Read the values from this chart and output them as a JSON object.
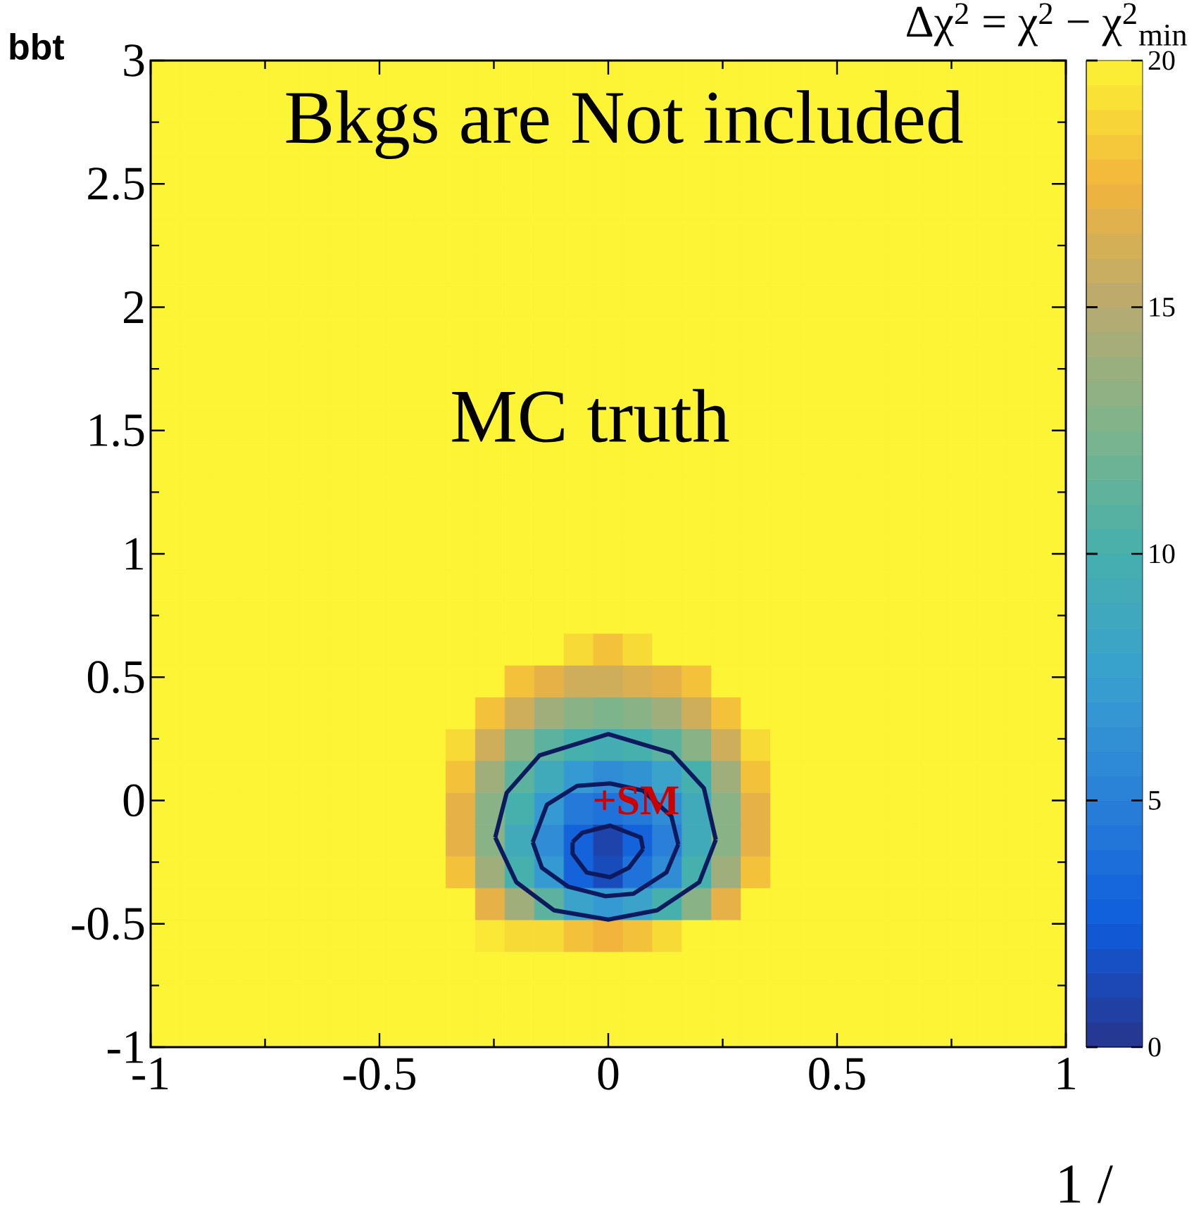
{
  "chart_data": {
    "type": "heatmap",
    "ylabel": "bbt",
    "xlabel": "1 /",
    "clabel": "Δχ$^{2}$ = χ$^{2}$ − χ$^{2}$$_{min}$",
    "annotations": [
      "Bkgs are Not included",
      "MC truth",
      "+SM"
    ],
    "xlim": [
      -1,
      1
    ],
    "ylim": [
      -1,
      3
    ],
    "xticks": [
      -1,
      -0.5,
      0,
      0.5,
      1
    ],
    "yticks": [
      -1,
      -0.5,
      0,
      0.5,
      1,
      1.5,
      2,
      2.5,
      3
    ],
    "clim": [
      0,
      20
    ],
    "cticks": [
      0,
      5,
      10,
      15,
      20
    ],
    "x": [
      -0.9677,
      -0.9032,
      -0.8387,
      -0.7742,
      -0.7097,
      -0.6452,
      -0.5806,
      -0.5161,
      -0.4516,
      -0.3871,
      -0.3226,
      -0.2581,
      -0.1935,
      -0.129,
      -0.0645,
      0,
      0.0645,
      0.129,
      0.1935,
      0.2581,
      0.3226,
      0.3871,
      0.4516,
      0.5161,
      0.5806,
      0.6452,
      0.7097,
      0.7742,
      0.8387,
      0.9032,
      0.9677
    ],
    "y": [
      2.9355,
      2.8065,
      2.6774,
      2.5484,
      2.4194,
      2.2903,
      2.1613,
      2.0323,
      1.9032,
      1.7742,
      1.6452,
      1.5161,
      1.3871,
      1.2581,
      1.129,
      1,
      0.871,
      0.7419,
      0.6129,
      0.4839,
      0.3548,
      0.2258,
      0.0968,
      -0.0323,
      -0.1613,
      -0.2903,
      -0.4194,
      -0.5484,
      -0.6774,
      -0.8065,
      -0.9355
    ],
    "cells": [
      [
        20,
        20,
        20,
        20,
        20,
        20,
        20,
        20,
        20,
        20,
        20,
        20,
        20,
        20,
        20,
        20,
        20,
        20,
        20,
        20,
        20,
        20,
        20,
        20,
        20,
        20,
        20,
        20,
        20,
        20,
        20
      ],
      [
        20,
        20,
        20,
        20,
        20,
        20,
        20,
        20,
        20,
        20,
        20,
        20,
        20,
        20,
        20,
        20,
        20,
        20,
        20,
        20,
        20,
        20,
        20,
        20,
        20,
        20,
        20,
        20,
        20,
        20,
        20
      ],
      [
        20,
        20,
        20,
        20,
        20,
        20,
        20,
        20,
        20,
        20,
        20,
        20,
        20,
        20,
        20,
        20,
        20,
        20,
        20,
        20,
        20,
        20,
        20,
        20,
        20,
        20,
        20,
        20,
        20,
        20,
        20
      ],
      [
        20,
        20,
        20,
        20,
        20,
        20,
        20,
        20,
        20,
        20,
        20,
        20,
        20,
        20,
        20,
        20,
        20,
        20,
        20,
        20,
        20,
        20,
        20,
        20,
        20,
        20,
        20,
        20,
        20,
        20,
        20
      ],
      [
        20,
        20,
        20,
        20,
        20,
        20,
        20,
        20,
        20,
        20,
        20,
        20,
        20,
        20,
        20,
        20,
        20,
        20,
        20,
        20,
        20,
        20,
        20,
        20,
        20,
        20,
        20,
        20,
        20,
        20,
        20
      ],
      [
        20,
        20,
        20,
        20,
        20,
        20,
        20,
        20,
        20,
        20,
        20,
        20,
        20,
        20,
        20,
        20,
        20,
        20,
        20,
        20,
        20,
        20,
        20,
        20,
        20,
        20,
        20,
        20,
        20,
        20,
        20
      ],
      [
        20,
        20,
        20,
        20,
        20,
        20,
        20,
        20,
        20,
        20,
        20,
        20,
        20,
        20,
        20,
        20,
        20,
        20,
        20,
        20,
        20,
        20,
        20,
        20,
        20,
        20,
        20,
        20,
        20,
        20,
        20
      ],
      [
        20,
        20,
        20,
        20,
        20,
        20,
        20,
        20,
        20,
        20,
        20,
        20,
        20,
        20,
        20,
        20,
        20,
        20,
        20,
        20,
        20,
        20,
        20,
        20,
        20,
        20,
        20,
        20,
        20,
        20,
        20
      ],
      [
        20,
        20,
        20,
        20,
        20,
        20,
        20,
        20,
        20,
        20,
        20,
        20,
        20,
        20,
        20,
        20,
        20,
        20,
        20,
        20,
        20,
        20,
        20,
        20,
        20,
        20,
        20,
        20,
        20,
        20,
        20
      ],
      [
        20,
        20,
        20,
        20,
        20,
        20,
        20,
        20,
        20,
        20,
        20,
        20,
        20,
        20,
        20,
        20,
        20,
        20,
        20,
        20,
        20,
        20,
        20,
        20,
        20,
        20,
        20,
        20,
        20,
        20,
        20
      ],
      [
        20,
        20,
        20,
        20,
        20,
        20,
        20,
        20,
        20,
        20,
        20,
        20,
        20,
        20,
        20,
        20,
        20,
        20,
        20,
        20,
        20,
        20,
        20,
        20,
        20,
        20,
        20,
        20,
        20,
        20,
        20
      ],
      [
        20,
        20,
        20,
        20,
        20,
        20,
        20,
        20,
        20,
        20,
        20,
        20,
        20,
        20,
        20,
        20,
        20,
        20,
        20,
        20,
        20,
        20,
        20,
        20,
        20,
        20,
        20,
        20,
        20,
        20,
        20
      ],
      [
        20,
        20,
        20,
        20,
        20,
        20,
        20,
        20,
        20,
        20,
        20,
        20,
        20,
        20,
        20,
        20,
        20,
        20,
        20,
        20,
        20,
        20,
        20,
        20,
        20,
        20,
        20,
        20,
        20,
        20,
        20
      ],
      [
        20,
        20,
        20,
        20,
        20,
        20,
        20,
        20,
        20,
        20,
        20,
        20,
        20,
        20,
        20,
        20,
        20,
        20,
        20,
        20,
        20,
        20,
        20,
        20,
        20,
        20,
        20,
        20,
        20,
        20,
        20
      ],
      [
        20,
        20,
        20,
        20,
        20,
        20,
        20,
        20,
        20,
        20,
        20,
        20,
        20,
        20,
        20,
        20,
        20,
        20,
        20,
        20,
        20,
        20,
        20,
        20,
        20,
        20,
        20,
        20,
        20,
        20,
        20
      ],
      [
        20,
        20,
        20,
        20,
        20,
        20,
        20,
        20,
        20,
        20,
        20,
        20,
        20,
        20,
        20,
        20,
        20,
        20,
        20,
        20,
        20,
        20,
        20,
        20,
        20,
        20,
        20,
        20,
        20,
        20,
        20
      ],
      [
        20,
        20,
        20,
        20,
        20,
        20,
        20,
        20,
        20,
        20,
        20,
        20,
        20,
        20,
        20,
        20,
        20,
        20,
        20,
        20,
        20,
        20,
        20,
        20,
        20,
        20,
        20,
        20,
        20,
        20,
        20
      ],
      [
        20,
        20,
        20,
        20,
        20,
        20,
        20,
        20,
        20,
        20,
        20,
        20,
        20,
        20,
        20,
        20,
        20,
        20,
        20,
        20,
        20,
        20,
        20,
        20,
        20,
        20,
        20,
        20,
        20,
        20,
        20
      ],
      [
        20,
        20,
        20,
        20,
        20,
        20,
        20,
        20,
        20,
        20,
        20,
        20,
        20,
        20,
        19,
        18,
        19,
        20,
        20,
        20,
        20,
        20,
        20,
        20,
        20,
        20,
        20,
        20,
        20,
        20,
        20
      ],
      [
        20,
        20,
        20,
        20,
        20,
        20,
        20,
        20,
        20,
        20,
        20,
        20,
        18,
        17,
        16,
        16,
        16.5,
        17,
        18,
        20,
        20,
        20,
        20,
        20,
        20,
        20,
        20,
        20,
        20,
        20,
        20
      ],
      [
        20,
        20,
        20,
        20,
        20,
        20,
        20,
        20,
        20,
        20,
        20,
        18,
        16,
        14,
        13,
        12.5,
        13,
        14,
        16,
        18,
        20,
        20,
        20,
        20,
        20,
        20,
        20,
        20,
        20,
        20,
        20
      ],
      [
        20,
        20,
        20,
        20,
        20,
        20,
        20,
        20,
        20,
        20,
        19,
        16,
        13,
        11,
        10,
        9.5,
        10,
        11,
        13,
        16,
        19,
        20,
        20,
        20,
        20,
        20,
        20,
        20,
        20,
        20,
        20
      ],
      [
        20,
        20,
        20,
        20,
        20,
        20,
        20,
        20,
        20,
        20,
        18,
        14,
        11,
        9,
        7,
        6,
        6.5,
        8,
        10,
        14,
        18,
        20,
        20,
        20,
        20,
        20,
        20,
        20,
        20,
        20,
        20
      ],
      [
        20,
        20,
        20,
        20,
        20,
        20,
        20,
        20,
        20,
        20,
        17,
        13,
        10,
        7,
        4.5,
        4,
        4.5,
        6,
        9,
        13,
        17,
        20,
        20,
        20,
        20,
        20,
        20,
        20,
        20,
        20,
        20
      ],
      [
        20,
        20,
        20,
        20,
        20,
        20,
        20,
        20,
        20,
        20,
        17,
        13,
        9,
        6,
        3,
        1,
        3,
        5,
        9,
        13,
        17,
        20,
        20,
        20,
        20,
        20,
        20,
        20,
        20,
        20,
        20
      ],
      [
        20,
        20,
        20,
        20,
        20,
        20,
        20,
        20,
        20,
        20,
        18,
        14,
        10,
        7,
        3,
        1.5,
        4,
        6,
        10,
        14,
        18,
        20,
        20,
        20,
        20,
        20,
        20,
        20,
        20,
        20,
        20
      ],
      [
        20,
        20,
        20,
        20,
        20,
        20,
        20,
        20,
        20,
        20,
        20,
        17,
        14,
        11,
        8,
        7,
        8,
        10,
        13,
        17,
        20,
        20,
        20,
        20,
        20,
        20,
        20,
        20,
        20,
        20,
        20
      ],
      [
        20,
        20,
        20,
        20,
        20,
        20,
        20,
        20,
        20,
        20,
        20,
        19.5,
        19,
        19,
        18,
        17.5,
        18,
        19,
        20,
        20,
        20,
        20,
        20,
        20,
        20,
        20,
        20,
        20,
        20,
        20,
        20
      ],
      [
        20,
        20,
        20,
        20,
        20,
        20,
        20,
        20,
        20,
        20,
        20,
        20,
        20,
        20,
        20,
        20,
        20,
        20,
        20,
        20,
        20,
        20,
        20,
        20,
        20,
        20,
        20,
        20,
        20,
        20,
        20
      ],
      [
        20,
        20,
        20,
        20,
        20,
        20,
        20,
        20,
        20,
        20,
        20,
        20,
        20,
        20,
        20,
        20,
        20,
        20,
        20,
        20,
        20,
        20,
        20,
        20,
        20,
        20,
        20,
        20,
        20,
        20,
        20
      ],
      [
        20,
        20,
        20,
        20,
        20,
        20,
        20,
        20,
        20,
        20,
        20,
        20,
        20,
        20,
        20,
        20,
        20,
        20,
        20,
        20,
        20,
        20,
        20,
        20,
        20,
        20,
        20,
        20,
        20,
        20,
        20
      ]
    ],
    "series": [
      {
        "type": "line",
        "color": "#0d1a5e",
        "x": [
          -0.247,
          -0.222,
          -0.15,
          0,
          0.138,
          0.209,
          0.235
        ],
        "values": [
          -0.15,
          0.031,
          0.183,
          0.269,
          0.193,
          0.05,
          -0.159
        ]
      },
      {
        "type": "line",
        "color": "#0d1a5e",
        "x": [
          -0.247,
          -0.201,
          -0.119,
          0,
          0.107,
          0.199,
          0.235
        ],
        "values": [
          -0.15,
          -0.331,
          -0.445,
          -0.483,
          -0.445,
          -0.331,
          -0.159
        ]
      },
      {
        "type": "line",
        "color": "#0d1a5e",
        "x": [
          -0.165,
          -0.134,
          -0.068,
          0.004,
          0.076,
          0.138,
          0.153
        ],
        "values": [
          -0.169,
          -0.017,
          0.059,
          0.069,
          0.04,
          -0.064,
          -0.178
        ]
      },
      {
        "type": "line",
        "color": "#0d1a5e",
        "x": [
          -0.165,
          -0.145,
          -0.088,
          -0.006,
          0.055,
          0.127,
          0.153
        ],
        "values": [
          -0.169,
          -0.273,
          -0.349,
          -0.388,
          -0.378,
          -0.292,
          -0.178
        ]
      },
      {
        "type": "line",
        "color": "#0d1a5e",
        "x": [
          -0.078,
          -0.057,
          0.004,
          0.071,
          0.076
        ],
        "values": [
          -0.169,
          -0.131,
          -0.102,
          -0.15,
          -0.197
        ]
      },
      {
        "type": "line",
        "color": "#0d1a5e",
        "x": [
          -0.078,
          -0.078,
          -0.047,
          0.004,
          0.045,
          0.076
        ],
        "values": [
          -0.169,
          -0.216,
          -0.292,
          -0.311,
          -0.273,
          -0.197
        ]
      }
    ]
  }
}
